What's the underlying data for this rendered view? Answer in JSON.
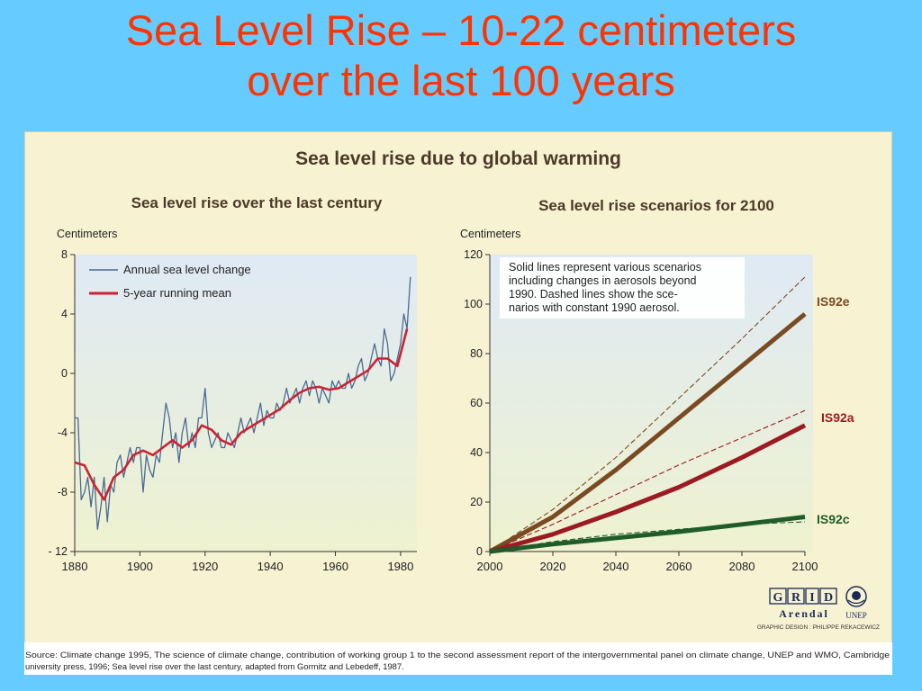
{
  "slide": {
    "title_line1": "Sea Level Rise – 10-22 centimeters",
    "title_line2": "over the last 100 years"
  },
  "figure": {
    "main_title": "Sea level rise due to global warming",
    "source_line1": "Source: Climate change 1995, The science of climate change, contribution of working group 1 to the second assessment report of the intergovernmental panel on climate change, UNEP and WMO, Cambridge",
    "source_line2": "university press,  1996; Sea level rise over the last century, adapted from Gormitz and Lebedeff, 1987.",
    "credit": {
      "grid_letters": [
        "G",
        "R",
        "I",
        "D"
      ],
      "arendal": "Arendal",
      "unep": "UNEP",
      "design": "GRAPHIC DESIGN : PHILIPPE REKACEWICZ"
    }
  },
  "colors": {
    "slide_bg": "#66ccff",
    "title": "#ff3300",
    "panel_bg": "#f7f2d2",
    "plot_bg_top": "#dfeaf5",
    "plot_bg_bottom": "#eef2cf",
    "annual_line": "#4a6a94",
    "running_mean": "#cc2233",
    "is92e": "#7a4a22",
    "is92a": "#9c1a22",
    "is92c": "#1f5c2a"
  },
  "chart_data": [
    {
      "type": "line",
      "title": "Sea level rise over the last century",
      "ylabel": "Centimeters",
      "xlabel": "",
      "xlim": [
        1880,
        1985
      ],
      "ylim": [
        -12,
        8
      ],
      "xticks": [
        1880,
        1900,
        1920,
        1940,
        1960,
        1980
      ],
      "yticks": [
        8,
        4,
        0,
        -4,
        -8,
        -12
      ],
      "ytick_labels": [
        "8",
        "4",
        "0",
        "-4",
        "-8",
        "- 12"
      ],
      "legend_placement": "top-left",
      "series": [
        {
          "name": "Annual sea level change",
          "color": "#4a6a94",
          "x": [
            1880,
            1881,
            1882,
            1883,
            1884,
            1885,
            1886,
            1887,
            1888,
            1889,
            1890,
            1891,
            1892,
            1893,
            1894,
            1895,
            1896,
            1897,
            1898,
            1899,
            1900,
            1901,
            1902,
            1903,
            1904,
            1905,
            1906,
            1907,
            1908,
            1909,
            1910,
            1911,
            1912,
            1913,
            1914,
            1915,
            1916,
            1917,
            1918,
            1919,
            1920,
            1921,
            1922,
            1923,
            1924,
            1925,
            1926,
            1927,
            1928,
            1929,
            1930,
            1931,
            1932,
            1933,
            1934,
            1935,
            1936,
            1937,
            1938,
            1939,
            1940,
            1941,
            1942,
            1943,
            1944,
            1945,
            1946,
            1947,
            1948,
            1949,
            1950,
            1951,
            1952,
            1953,
            1954,
            1955,
            1956,
            1957,
            1958,
            1959,
            1960,
            1961,
            1962,
            1963,
            1964,
            1965,
            1966,
            1967,
            1968,
            1969,
            1970,
            1971,
            1972,
            1973,
            1974,
            1975,
            1976,
            1977,
            1978,
            1979,
            1980,
            1981,
            1982,
            1983
          ],
          "values": [
            -3,
            -3,
            -8.5,
            -8,
            -7,
            -9,
            -7,
            -10.5,
            -9,
            -7,
            -10,
            -7.5,
            -8,
            -6,
            -5.5,
            -7,
            -6,
            -5,
            -6,
            -5,
            -5,
            -8,
            -5.5,
            -6.5,
            -7,
            -5.5,
            -6,
            -4,
            -2,
            -3,
            -5,
            -4,
            -6,
            -4,
            -3,
            -5,
            -4,
            -5,
            -3,
            -3,
            -1,
            -4,
            -5,
            -4.5,
            -4,
            -5,
            -5,
            -4,
            -4.5,
            -5,
            -4,
            -3,
            -4,
            -3.5,
            -3,
            -4,
            -3,
            -2,
            -3.5,
            -2.5,
            -3,
            -3,
            -2,
            -2.5,
            -2,
            -1,
            -2,
            -1.5,
            -1,
            -2,
            -1,
            -0.5,
            -1.5,
            -0.5,
            -1,
            -2,
            -1,
            -1.5,
            -2,
            -0.5,
            -1,
            -0.5,
            -1,
            -1,
            0,
            -1,
            -0.5,
            0.5,
            1,
            -0.5,
            0,
            1,
            2,
            1,
            0.5,
            3,
            2,
            -0.5,
            0,
            1,
            2,
            4,
            3,
            6.5
          ]
        },
        {
          "name": "5-year running mean",
          "color": "#cc2233",
          "x": [
            1880,
            1883,
            1886,
            1889,
            1892,
            1895,
            1898,
            1901,
            1904,
            1907,
            1910,
            1913,
            1916,
            1919,
            1922,
            1925,
            1928,
            1931,
            1934,
            1937,
            1940,
            1943,
            1946,
            1949,
            1952,
            1955,
            1958,
            1961,
            1964,
            1967,
            1970,
            1973,
            1976,
            1979,
            1982
          ],
          "values": [
            -6,
            -6.2,
            -7.5,
            -8.5,
            -7,
            -6.5,
            -5.5,
            -5.2,
            -5.5,
            -5,
            -4.5,
            -5,
            -4.5,
            -3.5,
            -3.8,
            -4.5,
            -4.8,
            -4,
            -3.6,
            -3.2,
            -2.8,
            -2.4,
            -1.8,
            -1.3,
            -1,
            -0.9,
            -1.1,
            -1,
            -0.6,
            -0.2,
            0.2,
            1,
            1,
            0.5,
            3
          ]
        }
      ]
    },
    {
      "type": "line",
      "title": "Sea level rise scenarios for 2100",
      "ylabel": "Centimeters",
      "xlabel": "",
      "xlim": [
        2000,
        2100
      ],
      "ylim": [
        0,
        120
      ],
      "xticks": [
        2000,
        2020,
        2040,
        2060,
        2080,
        2100
      ],
      "yticks": [
        0,
        20,
        40,
        60,
        80,
        100,
        120
      ],
      "annotation": [
        "Solid lines represent various scenarios",
        "including changes in aerosols beyond",
        "1990. Dashed lines show the sce-",
        "narios with constant 1990 aerosol."
      ],
      "series": [
        {
          "name": "IS92e",
          "style": "solid",
          "color": "#7a4a22",
          "x": [
            2000,
            2020,
            2040,
            2060,
            2080,
            2100
          ],
          "values": [
            0,
            14,
            33,
            54,
            75,
            96
          ]
        },
        {
          "name": "IS92e",
          "style": "dashed",
          "color": "#7a4a22",
          "x": [
            2000,
            2020,
            2040,
            2060,
            2080,
            2100
          ],
          "values": [
            0,
            17,
            38,
            62,
            86,
            111
          ]
        },
        {
          "name": "IS92a",
          "style": "solid",
          "color": "#9c1a22",
          "x": [
            2000,
            2020,
            2040,
            2060,
            2080,
            2100
          ],
          "values": [
            0,
            7,
            16,
            26,
            38,
            51
          ]
        },
        {
          "name": "IS92a",
          "style": "dashed",
          "color": "#9c1a22",
          "x": [
            2000,
            2020,
            2040,
            2060,
            2080,
            2100
          ],
          "values": [
            0,
            11,
            23,
            35,
            46,
            57
          ]
        },
        {
          "name": "IS92c",
          "style": "solid",
          "color": "#1f5c2a",
          "x": [
            2000,
            2020,
            2040,
            2060,
            2080,
            2100
          ],
          "values": [
            0,
            3,
            5.5,
            8,
            11,
            14
          ]
        },
        {
          "name": "IS92c",
          "style": "dashed",
          "color": "#1f5c2a",
          "x": [
            2000,
            2020,
            2040,
            2060,
            2080,
            2100
          ],
          "values": [
            0,
            4,
            7,
            9,
            11,
            12
          ]
        }
      ]
    }
  ]
}
